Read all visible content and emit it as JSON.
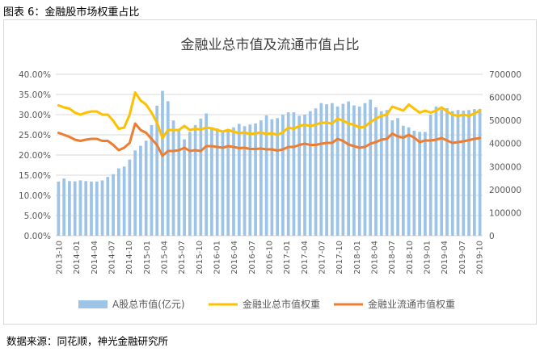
{
  "figure_caption": "图表 6：金融股市场权重占比",
  "source_note": "数据来源：同花顺，神光金融研究所",
  "colors": {
    "bars": "#9dc3e6",
    "line_total": "#ffc000",
    "line_float": "#ed7d31",
    "grid": "#d9d9d9"
  },
  "chart_data": {
    "type": "bar",
    "title": "金融业总市值及流通市值占比",
    "left_axis": {
      "ticks": [
        "0.00%",
        "5.00%",
        "10.00%",
        "15.00%",
        "20.00%",
        "25.00%",
        "30.00%",
        "35.00%",
        "40.00%"
      ],
      "ylim": [
        0,
        0.4
      ]
    },
    "right_axis": {
      "ticks": [
        "0",
        "100000",
        "200000",
        "300000",
        "400000",
        "500000",
        "600000",
        "700000"
      ],
      "ylim": [
        0,
        700000
      ]
    },
    "x_labels": [
      "2013-10",
      "2014-01",
      "2014-04",
      "2014-07",
      "2014-10",
      "2015-01",
      "2015-04",
      "2015-07",
      "2015-10",
      "2016-01",
      "2016-04",
      "2016-07",
      "2016-10",
      "2017-01",
      "2017-04",
      "2017-07",
      "2017-10",
      "2018-01",
      "2018-04",
      "2018-07",
      "2018-10",
      "2019-01",
      "2019-04",
      "2019-07",
      "2019-10"
    ],
    "legend": [
      "A股总市值(亿元)",
      "金融业总市值权重",
      "金融业流通市值权重"
    ],
    "series": [
      {
        "name": "A股总市值(亿元)",
        "axis": "right",
        "values": [
          235000,
          248000,
          237000,
          236000,
          240000,
          237000,
          235000,
          235000,
          240000,
          255000,
          267000,
          292000,
          300000,
          330000,
          370000,
          390000,
          412000,
          480000,
          564000,
          628000,
          583000,
          500000,
          460000,
          418000,
          450000,
          480000,
          508000,
          530000,
          470000,
          465000,
          455000,
          455000,
          470000,
          485000,
          475000,
          482000,
          487000,
          500000,
          522000,
          505000,
          510000,
          525000,
          535000,
          535000,
          520000,
          525000,
          540000,
          552000,
          575000,
          570000,
          575000,
          560000,
          572000,
          582000,
          565000,
          560000,
          575000,
          590000,
          557000,
          540000,
          545000,
          500000,
          510000,
          477000,
          470000,
          455000,
          450000,
          450000,
          525000,
          560000,
          548000,
          553000,
          540000,
          545000,
          542000,
          545000,
          549000,
          550000
        ]
      },
      {
        "name": "金融业总市值权重",
        "axis": "left",
        "values": [
          0.323,
          0.318,
          0.315,
          0.305,
          0.3,
          0.305,
          0.308,
          0.308,
          0.3,
          0.3,
          0.285,
          0.265,
          0.268,
          0.3,
          0.355,
          0.335,
          0.325,
          0.305,
          0.28,
          0.242,
          0.262,
          0.262,
          0.262,
          0.272,
          0.262,
          0.265,
          0.263,
          0.268,
          0.266,
          0.262,
          0.258,
          0.262,
          0.258,
          0.254,
          0.256,
          0.252,
          0.254,
          0.256,
          0.252,
          0.254,
          0.25,
          0.256,
          0.268,
          0.265,
          0.272,
          0.275,
          0.272,
          0.275,
          0.28,
          0.28,
          0.278,
          0.29,
          0.285,
          0.278,
          0.275,
          0.268,
          0.27,
          0.282,
          0.29,
          0.297,
          0.3,
          0.32,
          0.315,
          0.31,
          0.325,
          0.315,
          0.305,
          0.31,
          0.305,
          0.31,
          0.318,
          0.308,
          0.3,
          0.297,
          0.3,
          0.297,
          0.303,
          0.31
        ]
      },
      {
        "name": "金融业流通市值权重",
        "axis": "left",
        "values": [
          0.255,
          0.25,
          0.245,
          0.238,
          0.235,
          0.238,
          0.24,
          0.24,
          0.235,
          0.235,
          0.225,
          0.212,
          0.218,
          0.23,
          0.278,
          0.262,
          0.255,
          0.24,
          0.225,
          0.198,
          0.21,
          0.21,
          0.212,
          0.218,
          0.21,
          0.212,
          0.21,
          0.222,
          0.222,
          0.22,
          0.218,
          0.222,
          0.22,
          0.217,
          0.218,
          0.215,
          0.215,
          0.216,
          0.214,
          0.214,
          0.211,
          0.214,
          0.22,
          0.22,
          0.225,
          0.228,
          0.225,
          0.225,
          0.228,
          0.23,
          0.23,
          0.24,
          0.235,
          0.226,
          0.222,
          0.218,
          0.22,
          0.228,
          0.232,
          0.238,
          0.24,
          0.253,
          0.246,
          0.243,
          0.25,
          0.243,
          0.232,
          0.236,
          0.236,
          0.238,
          0.242,
          0.236,
          0.23,
          0.232,
          0.234,
          0.237,
          0.24,
          0.242
        ]
      }
    ]
  }
}
